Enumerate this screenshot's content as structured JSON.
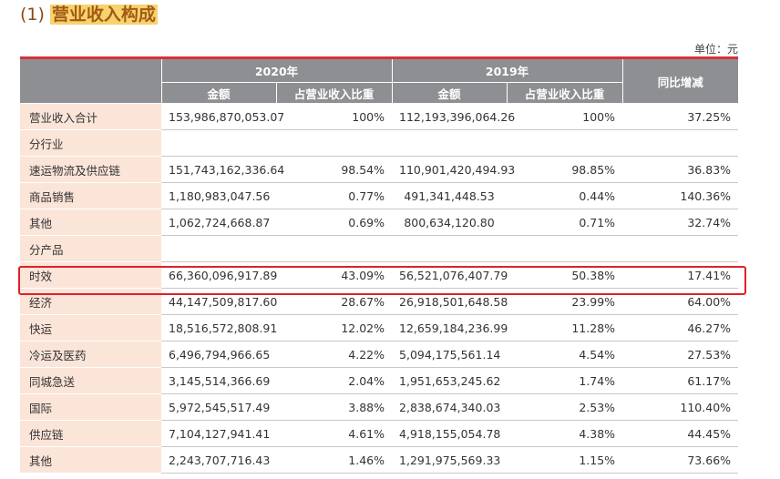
{
  "section": {
    "number": "(1)",
    "title": "营业收入构成"
  },
  "unit_label": "单位：元",
  "header": {
    "year_2020": "2020年",
    "year_2019": "2019年",
    "amount": "金额",
    "ratio": "占营业收入比重",
    "yoy": "同比增减"
  },
  "rows": [
    {
      "label": "营业收入合计",
      "a2020": "153,986,870,053.07",
      "r2020": "100%",
      "a2019": "112,193,396,064.26",
      "r2019": "100%",
      "yoy": "37.25%"
    },
    {
      "label": "分行业",
      "a2020": "",
      "r2020": "",
      "a2019": "",
      "r2019": "",
      "yoy": ""
    },
    {
      "label": "速运物流及供应链",
      "a2020": "151,743,162,336.64",
      "r2020": "98.54%",
      "a2019": "110,901,420,494.93",
      "r2019": "98.85%",
      "yoy": "36.83%"
    },
    {
      "label": "商品销售",
      "a2020": "1,180,983,047.56",
      "r2020": "0.77%",
      "a2019": "491,341,448.53",
      "r2019": "0.44%",
      "yoy": "140.36%"
    },
    {
      "label": "其他",
      "a2020": "1,062,724,668.87",
      "r2020": "0.69%",
      "a2019": "800,634,120.80",
      "r2019": "0.71%",
      "yoy": "32.74%"
    },
    {
      "label": "分产品",
      "a2020": "",
      "r2020": "",
      "a2019": "",
      "r2019": "",
      "yoy": ""
    },
    {
      "label": "时效",
      "a2020": "66,360,096,917.89",
      "r2020": "43.09%",
      "a2019": "56,521,076,407.79",
      "r2019": "50.38%",
      "yoy": "17.41%"
    },
    {
      "label": "经济",
      "a2020": "44,147,509,817.60",
      "r2020": "28.67%",
      "a2019": "26,918,501,648.58",
      "r2019": "23.99%",
      "yoy": "64.00%"
    },
    {
      "label": "快运",
      "a2020": "18,516,572,808.91",
      "r2020": "12.02%",
      "a2019": "12,659,184,236.99",
      "r2019": "11.28%",
      "yoy": "46.27%"
    },
    {
      "label": "冷运及医药",
      "a2020": "6,496,794,966.65",
      "r2020": "4.22%",
      "a2019": "5,094,175,561.14",
      "r2019": "4.54%",
      "yoy": "27.53%"
    },
    {
      "label": "同城急送",
      "a2020": "3,145,514,366.69",
      "r2020": "2.04%",
      "a2019": "1,951,653,245.62",
      "r2019": "1.74%",
      "yoy": "61.17%"
    },
    {
      "label": "国际",
      "a2020": "5,972,545,517.49",
      "r2020": "3.88%",
      "a2019": "2,838,674,340.03",
      "r2019": "2.53%",
      "yoy": "110.40%"
    },
    {
      "label": "供应链",
      "a2020": "7,104,127,941.41",
      "r2020": "4.61%",
      "a2019": "4,918,155,054.78",
      "r2019": "4.38%",
      "yoy": "44.45%"
    },
    {
      "label": "其他",
      "a2020": "2,243,707,716.43",
      "r2020": "1.46%",
      "a2019": "1,291,975,569.33",
      "r2019": "1.15%",
      "yoy": "73.66%"
    }
  ],
  "colors": {
    "header_bg": "#8e8f92",
    "label_bg": "#fbe4d8",
    "accent_red": "#d6323a",
    "title_highlight": "#f7d36b"
  }
}
